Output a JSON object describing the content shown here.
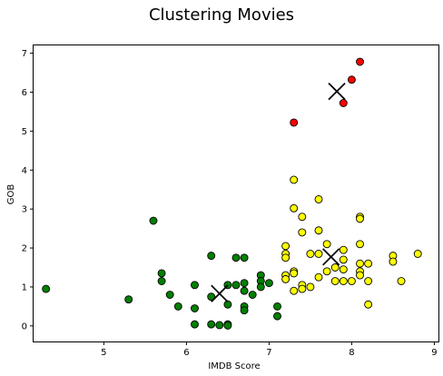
{
  "chart_data": {
    "type": "scatter",
    "title": "Clustering Movies",
    "xlabel": "IMDB Score",
    "ylabel": "GOB",
    "xlim": [
      4.15,
      9.05
    ],
    "ylim": [
      -0.4,
      7.2
    ],
    "x_ticks": [
      5,
      6,
      7,
      8,
      9
    ],
    "x_tick_labels": [
      "5",
      "6",
      "7",
      "8",
      "9"
    ],
    "y_ticks": [
      0,
      1,
      2,
      3,
      4,
      5,
      6,
      7
    ],
    "y_tick_labels": [
      "0",
      "1",
      "2",
      "3",
      "4",
      "5",
      "6",
      "7"
    ],
    "grid": false,
    "series": [
      {
        "color": "#008000",
        "points": [
          [
            4.3,
            0.95
          ],
          [
            5.3,
            0.68
          ],
          [
            5.6,
            2.7
          ],
          [
            5.7,
            1.35
          ],
          [
            5.7,
            1.15
          ],
          [
            5.8,
            0.8
          ],
          [
            5.9,
            0.5
          ],
          [
            6.1,
            1.05
          ],
          [
            6.1,
            0.45
          ],
          [
            6.1,
            0.04
          ],
          [
            6.3,
            1.8
          ],
          [
            6.3,
            0.75
          ],
          [
            6.3,
            0.04
          ],
          [
            6.4,
            0.02
          ],
          [
            6.5,
            1.05
          ],
          [
            6.5,
            0.55
          ],
          [
            6.5,
            0.04
          ],
          [
            6.5,
            0.01
          ],
          [
            6.6,
            1.75
          ],
          [
            6.6,
            1.05
          ],
          [
            6.7,
            1.75
          ],
          [
            6.7,
            1.1
          ],
          [
            6.7,
            0.9
          ],
          [
            6.7,
            0.5
          ],
          [
            6.7,
            0.4
          ],
          [
            6.8,
            0.8
          ],
          [
            6.9,
            1.3
          ],
          [
            6.9,
            1.15
          ],
          [
            6.9,
            1.0
          ],
          [
            7.0,
            1.1
          ],
          [
            7.1,
            0.5
          ],
          [
            7.1,
            0.25
          ]
        ]
      },
      {
        "color": "#ffff00",
        "points": [
          [
            7.2,
            2.05
          ],
          [
            7.2,
            1.85
          ],
          [
            7.2,
            1.75
          ],
          [
            7.2,
            1.3
          ],
          [
            7.2,
            1.2
          ],
          [
            7.3,
            3.75
          ],
          [
            7.3,
            3.02
          ],
          [
            7.3,
            1.4
          ],
          [
            7.3,
            1.35
          ],
          [
            7.3,
            0.9
          ],
          [
            7.4,
            2.8
          ],
          [
            7.4,
            2.4
          ],
          [
            7.4,
            1.05
          ],
          [
            7.4,
            0.95
          ],
          [
            7.5,
            1.85
          ],
          [
            7.5,
            1.0
          ],
          [
            7.6,
            3.25
          ],
          [
            7.6,
            2.45
          ],
          [
            7.6,
            1.85
          ],
          [
            7.6,
            1.25
          ],
          [
            7.7,
            2.1
          ],
          [
            7.7,
            1.4
          ],
          [
            7.8,
            1.5
          ],
          [
            7.8,
            1.15
          ],
          [
            7.9,
            1.95
          ],
          [
            7.9,
            1.7
          ],
          [
            7.9,
            1.45
          ],
          [
            7.9,
            1.15
          ],
          [
            8.0,
            1.15
          ],
          [
            8.1,
            2.8
          ],
          [
            8.1,
            2.75
          ],
          [
            8.1,
            2.1
          ],
          [
            8.1,
            1.6
          ],
          [
            8.1,
            1.4
          ],
          [
            8.1,
            1.3
          ],
          [
            8.2,
            1.6
          ],
          [
            8.2,
            1.15
          ],
          [
            8.2,
            0.55
          ],
          [
            8.5,
            1.8
          ],
          [
            8.5,
            1.65
          ],
          [
            8.6,
            1.15
          ],
          [
            8.8,
            1.85
          ]
        ]
      },
      {
        "color": "#ff0000",
        "points": [
          [
            7.3,
            5.22
          ],
          [
            7.9,
            5.72
          ],
          [
            8.0,
            6.32
          ],
          [
            8.1,
            6.78
          ]
        ]
      }
    ],
    "centroids": [
      [
        6.4,
        0.83
      ],
      [
        7.75,
        1.77
      ],
      [
        7.82,
        6.02
      ]
    ]
  },
  "colors": {
    "cluster_green": "#008000",
    "cluster_yellow": "#ffff00",
    "cluster_red": "#ff0000",
    "centroid_marker": "#000000"
  }
}
